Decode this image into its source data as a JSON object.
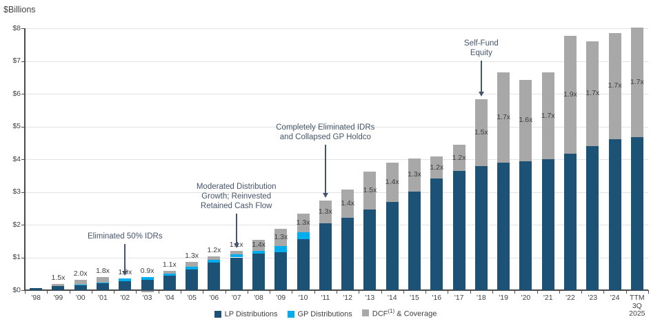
{
  "title": "$Billions",
  "colors": {
    "lp": "#1b5276",
    "gp": "#00aeef",
    "dcf": "#a8a8a8",
    "annotation": "#44546a",
    "axis": "#4a4a4a",
    "text": "#404040"
  },
  "chart_data": {
    "type": "bar",
    "stacked": true,
    "title": "$Billions",
    "ylabel": "$Billions",
    "ylim": [
      0,
      8
    ],
    "ytick_labels": [
      "$0",
      "$1",
      "$2",
      "$3",
      "$4",
      "$5",
      "$6",
      "$7",
      "$8"
    ],
    "grid": true,
    "legend_position": "bottom",
    "categories": [
      "'98",
      "'99",
      "'00",
      "'01",
      "'02",
      "'03",
      "'04",
      "'05",
      "'06",
      "'07",
      "'08",
      "'09",
      "'10",
      "'11",
      "'12",
      "'13",
      "'14",
      "'15",
      "'16",
      "'17",
      "'18",
      "'19",
      "'20",
      "'21",
      "'22",
      "'23",
      "'24",
      "TTM 3Q 2025"
    ],
    "series": [
      {
        "name": "LP Distributions",
        "color": "#1b5276",
        "values": [
          0.06,
          0.13,
          0.15,
          0.21,
          0.28,
          0.32,
          0.44,
          0.64,
          0.84,
          1.0,
          1.11,
          1.16,
          1.56,
          2.05,
          2.21,
          2.46,
          2.69,
          3.02,
          3.41,
          3.64,
          3.79,
          3.89,
          3.93,
          4.0,
          4.17,
          4.4,
          4.62,
          4.67
        ]
      },
      {
        "name": "GP Distributions",
        "color": "#00aeef",
        "values": [
          0,
          0,
          0.01,
          0.03,
          0.07,
          0.07,
          0.06,
          0.08,
          0.08,
          0.09,
          0.1,
          0.18,
          0.21,
          0,
          0,
          0,
          0,
          0,
          0,
          0,
          0,
          0,
          0,
          0,
          0,
          0,
          0,
          0
        ]
      },
      {
        "name": "DCF & Coverage",
        "color": "#a8a8a8",
        "values": [
          0,
          0.07,
          0.16,
          0.15,
          0,
          -0.05,
          0.08,
          0.14,
          0.12,
          0.11,
          0.32,
          0.53,
          0.57,
          0.68,
          0.87,
          1.17,
          1.2,
          1.0,
          0.67,
          0.8,
          2.04,
          2.76,
          2.5,
          2.65,
          3.59,
          3.21,
          3.24,
          3.35
        ]
      }
    ],
    "coverage_labels": [
      "",
      "1.5x",
      "2.0x",
      "1.8x",
      "1.0x",
      "0.9x",
      "1.1x",
      "1.3x",
      "1.2x",
      "1.1x",
      "1.4x",
      "1.3x",
      "1.3x",
      "1.3x",
      "1.4x",
      "1.5x",
      "1.4x",
      "1.3x",
      "1.2x",
      "1.2x",
      "1.5x",
      "1.7x",
      "1.6x",
      "1.7x",
      "1.9x",
      "1.7x",
      "1.7x",
      "1.7x"
    ],
    "annotations": [
      {
        "id": "eliminated-50-idrs",
        "lines": [
          "Eliminated 50% IDRs"
        ],
        "target": "'02"
      },
      {
        "id": "moderated-distribution-growth",
        "lines": [
          "Moderated Distribution",
          "Growth; Reinvested",
          "Retained Cash Flow"
        ],
        "target": "'07"
      },
      {
        "id": "completely-eliminated-idrs",
        "lines": [
          "Completely Eliminated IDRs",
          "and Collapsed GP Holdco"
        ],
        "target": "'11"
      },
      {
        "id": "self-fund-equity",
        "lines": [
          "Self-Fund",
          "Equity"
        ],
        "target": "'18"
      }
    ]
  },
  "legend": {
    "items": [
      {
        "label": "LP Distributions",
        "color": "#1b5276"
      },
      {
        "label": "GP Distributions",
        "color": "#00aeef"
      },
      {
        "label_pre": "DCF",
        "footnote": "(1)",
        "label_post": " & Coverage",
        "color": "#a8a8a8"
      }
    ]
  }
}
